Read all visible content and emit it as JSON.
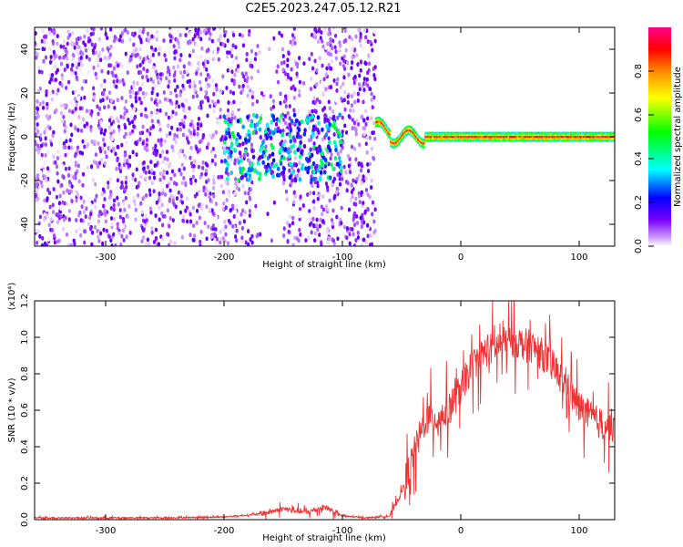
{
  "title": "C2E5.2023.247.05.12.R21",
  "chart_data": [
    {
      "type": "heatmap",
      "xlabel": "Height of straight line (km)",
      "ylabel": "Frequency (Hz)",
      "xlim": [
        -360,
        130
      ],
      "ylim": [
        -50,
        50
      ],
      "xticks": [
        -300,
        -200,
        -100,
        0,
        100
      ],
      "yticks": [
        -40,
        -20,
        0,
        20,
        40
      ],
      "colorbar": {
        "label": "Normalized spectral amplitude",
        "range": [
          0,
          1
        ],
        "ticks": [
          0.0,
          0.2,
          0.4,
          0.6,
          0.8
        ],
        "colormap": "rainbow (white, violet, blue, cyan, green, yellow, orange, red)"
      },
      "regions": [
        {
          "x_range": [
            -360,
            -72
          ],
          "frequency_range": [
            -50,
            50
          ],
          "description": "broadband noise",
          "amplitude_range": [
            0.0,
            0.15
          ]
        },
        {
          "x_range": [
            -200,
            -100
          ],
          "frequency_range": [
            -20,
            10
          ],
          "description": "enhanced signal",
          "amplitude_range": [
            0.1,
            0.5
          ]
        },
        {
          "x_range": [
            -72,
            130
          ],
          "frequency_center": 0,
          "description": "narrow carrier line",
          "amplitude_range": [
            0.4,
            1.0
          ]
        }
      ],
      "grid": false
    },
    {
      "type": "line",
      "xlabel": "Height of straight line (km)",
      "ylabel": "SNR (10 * v/v)",
      "y_multiplier": "(x10⁴)",
      "xlim": [
        -360,
        130
      ],
      "ylim": [
        0,
        1.2
      ],
      "xticks": [
        -300,
        -200,
        -100,
        0,
        100
      ],
      "yticks": [
        0.0,
        0.2,
        0.4,
        0.6,
        0.8,
        1.0,
        1.2
      ],
      "color": "#ee3333",
      "x": [
        -360,
        -300,
        -250,
        -200,
        -170,
        -150,
        -130,
        -115,
        -100,
        -80,
        -60,
        -50,
        -40,
        -30,
        -20,
        -10,
        0,
        10,
        20,
        30,
        40,
        50,
        60,
        70,
        80,
        90,
        100,
        110,
        120,
        130
      ],
      "values": [
        0.01,
        0.01,
        0.01,
        0.015,
        0.03,
        0.06,
        0.04,
        0.07,
        0.02,
        0.01,
        0.02,
        0.15,
        0.35,
        0.55,
        0.55,
        0.6,
        0.72,
        0.85,
        0.92,
        0.95,
        0.98,
        0.97,
        0.95,
        0.9,
        0.82,
        0.72,
        0.62,
        0.56,
        0.52,
        0.52
      ],
      "grid": false
    }
  ]
}
